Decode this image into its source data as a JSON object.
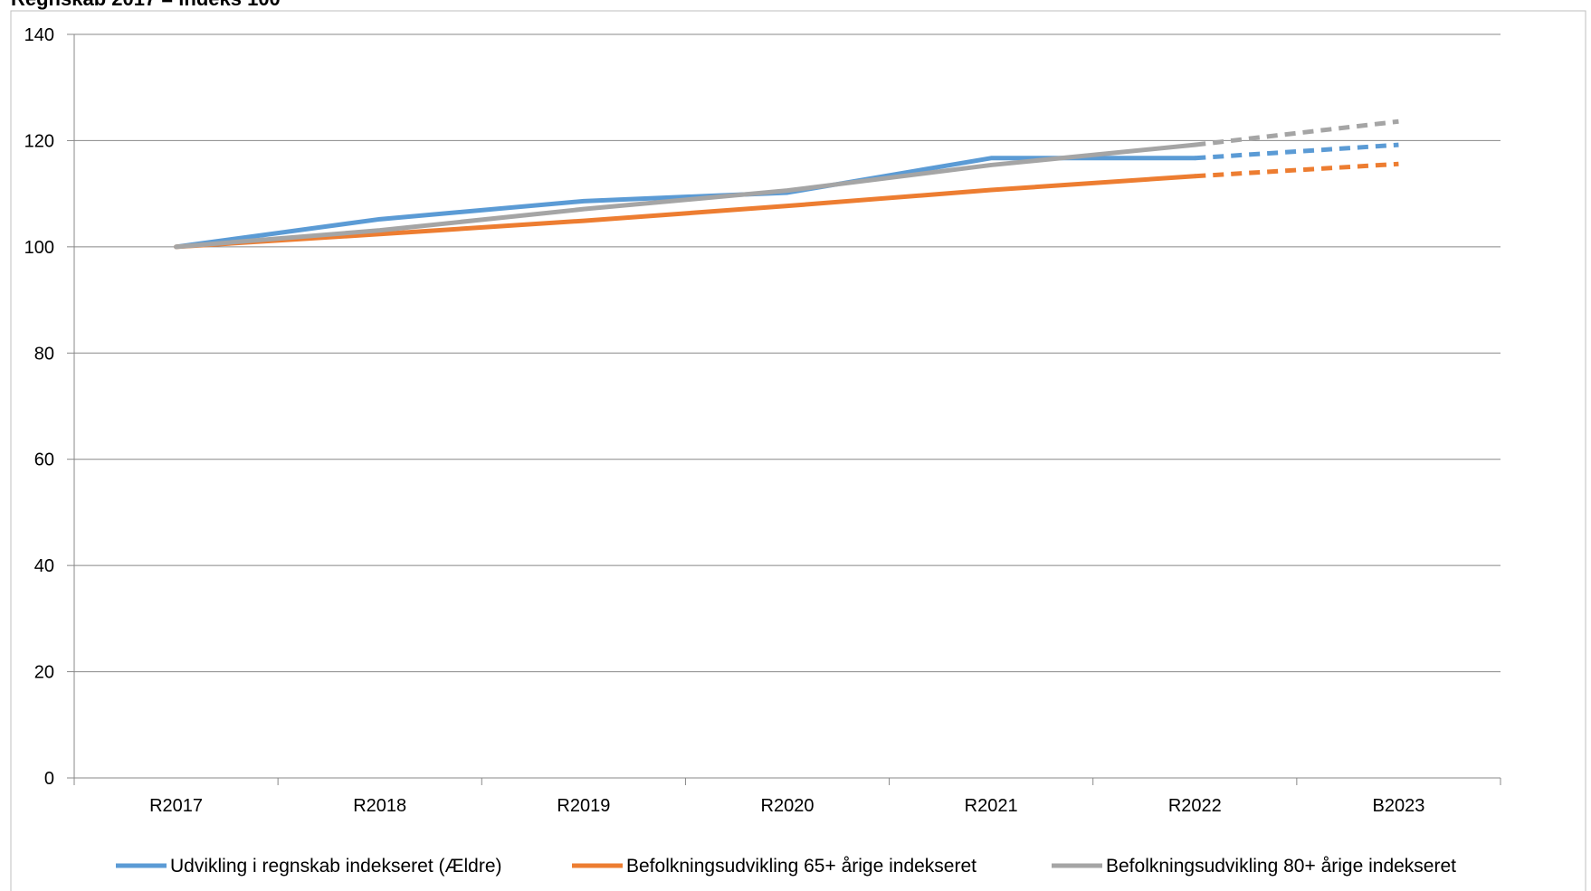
{
  "chart_data": {
    "type": "line",
    "title": "Regnskab 2017 = indeks 100",
    "categories": [
      "R2017",
      "R2018",
      "R2019",
      "R2020",
      "R2021",
      "R2022",
      "B2023"
    ],
    "y_ticks": [
      "0",
      "20",
      "40",
      "60",
      "80",
      "100",
      "120",
      "140"
    ],
    "ylim": [
      0,
      140
    ],
    "grid": true,
    "legend_position": "bottom",
    "dashed_from_index": 5,
    "series": [
      {
        "name": "Udvikling i regnskab indekseret (Ældre)",
        "color": "#5B9BD5",
        "values": [
          100,
          105.2,
          108.6,
          110.2,
          116.7,
          116.7,
          119.2
        ]
      },
      {
        "name": "Befolkningsudvikling 65+ årige indekseret",
        "color": "#ED7D31",
        "values": [
          100,
          102.4,
          104.9,
          107.7,
          110.7,
          113.3,
          115.6
        ]
      },
      {
        "name": "Befolkningsudvikling 80+ årige indekseret",
        "color": "#A5A5A5",
        "values": [
          100,
          103.1,
          107.1,
          110.6,
          115.4,
          119.2,
          123.6
        ]
      }
    ]
  }
}
